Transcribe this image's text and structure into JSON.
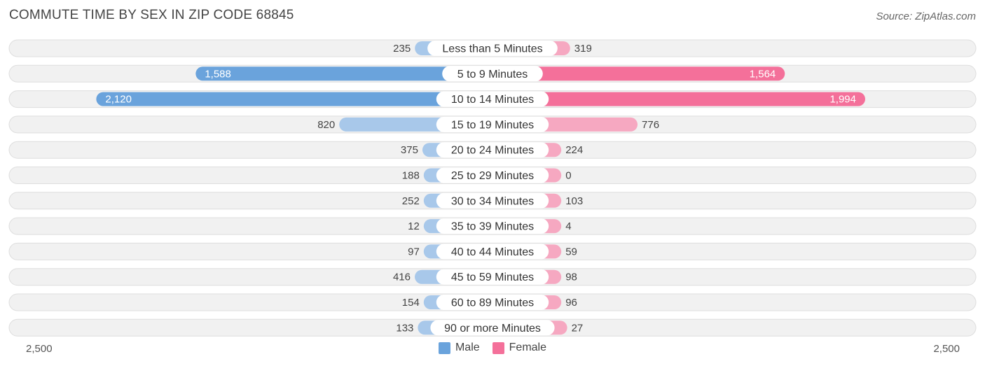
{
  "title": "COMMUTE TIME BY SEX IN ZIP CODE 68845",
  "source": "Source: ZipAtlas.com",
  "colors": {
    "male_strong": "#6aa3dc",
    "male_light": "#a8c8ea",
    "female_strong": "#f4709a",
    "female_light": "#f6a8c1",
    "row_bg": "#f1f1f1",
    "row_border": "#dedede"
  },
  "chart_data": {
    "type": "bar",
    "orientation": "horizontal-diverging",
    "categories": [
      "Less than 5 Minutes",
      "5 to 9 Minutes",
      "10 to 14 Minutes",
      "15 to 19 Minutes",
      "20 to 24 Minutes",
      "25 to 29 Minutes",
      "30 to 34 Minutes",
      "35 to 39 Minutes",
      "40 to 44 Minutes",
      "45 to 59 Minutes",
      "60 to 89 Minutes",
      "90 or more Minutes"
    ],
    "series": [
      {
        "name": "Male",
        "values": [
          235,
          1588,
          2120,
          820,
          375,
          188,
          252,
          12,
          97,
          416,
          154,
          133
        ],
        "labels": [
          "235",
          "1,588",
          "2,120",
          "820",
          "375",
          "188",
          "252",
          "12",
          "97",
          "416",
          "154",
          "133"
        ]
      },
      {
        "name": "Female",
        "values": [
          319,
          1564,
          1994,
          776,
          224,
          0,
          103,
          4,
          59,
          98,
          96,
          27
        ],
        "labels": [
          "319",
          "1,564",
          "1,994",
          "776",
          "224",
          "0",
          "103",
          "4",
          "59",
          "98",
          "96",
          "27"
        ]
      }
    ],
    "xlim": [
      -2500,
      2500
    ],
    "axis_labels": {
      "left": "2,500",
      "right": "2,500"
    },
    "legend_placement": "bottom-center"
  }
}
